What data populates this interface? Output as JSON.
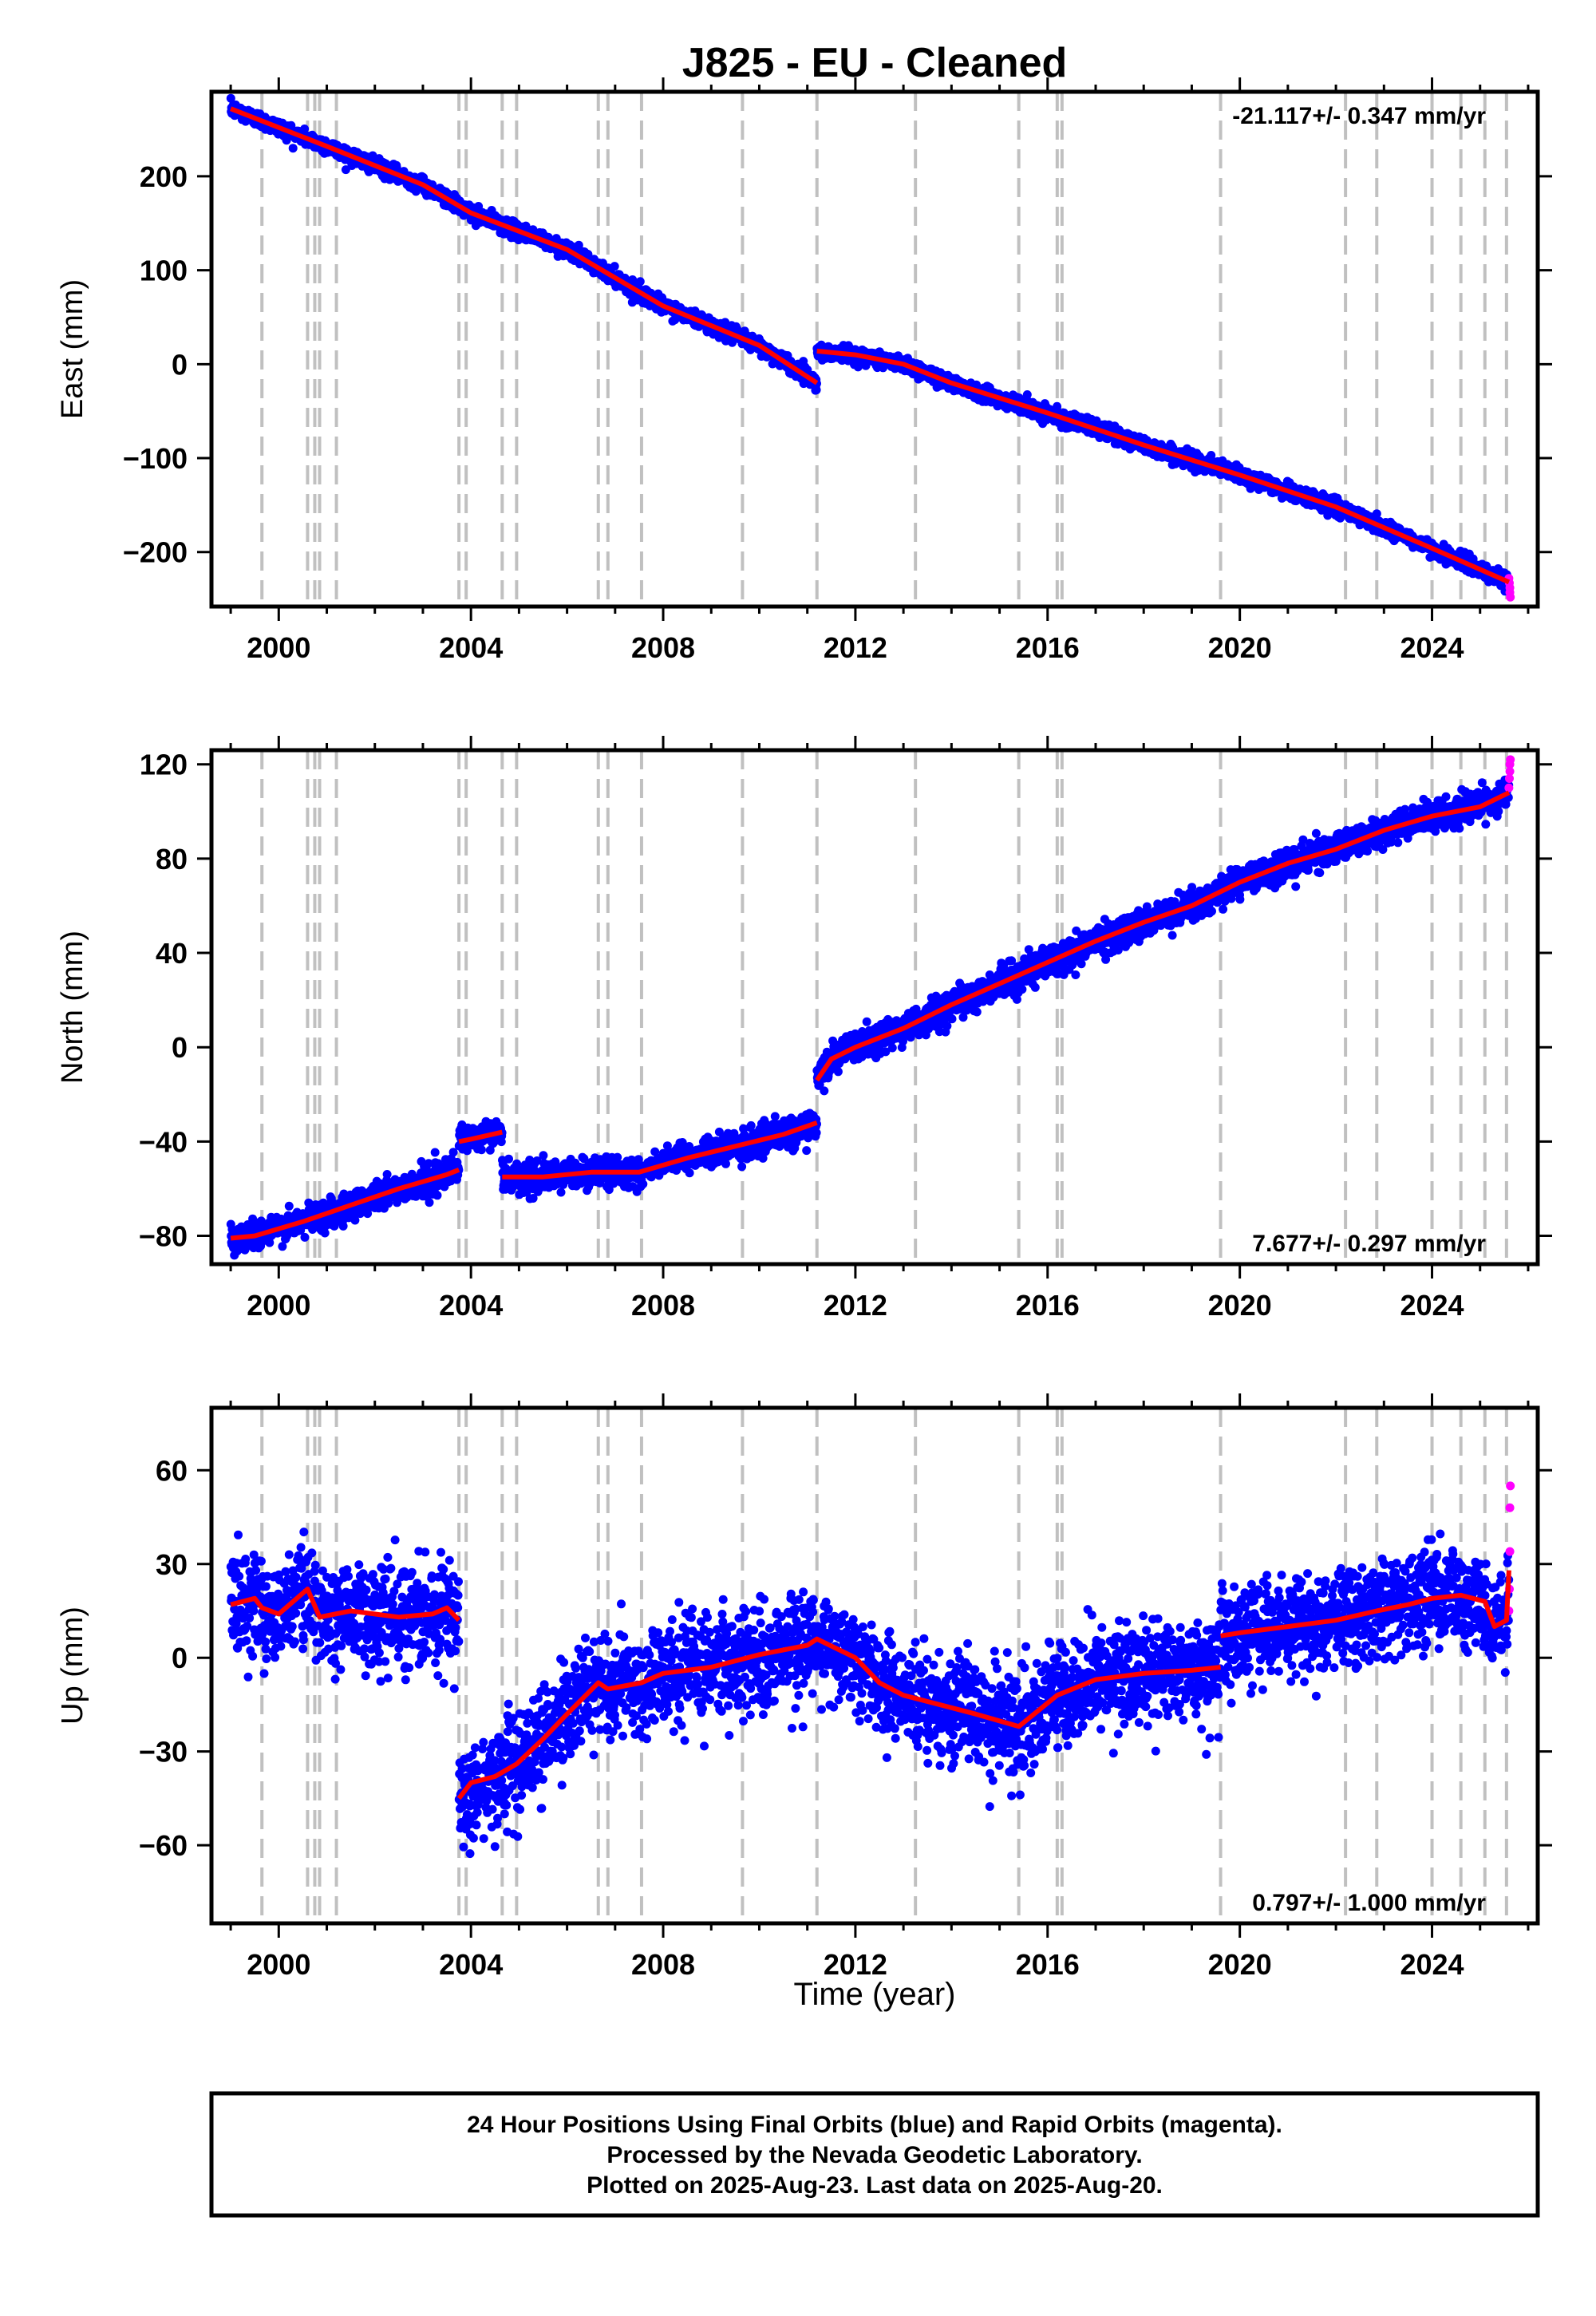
{
  "title": "J825  - EU - Cleaned",
  "xlabel": "Time (year)",
  "footer": {
    "line1": "24 Hour Positions Using Final Orbits (blue) and Rapid Orbits (magenta).",
    "line2": "Processed by the Nevada Geodetic Laboratory.",
    "line3": "Plotted on 2025-Aug-23. Last data on 2025-Aug-20."
  },
  "colors": {
    "final_orbits": "#0000ff",
    "rapid_orbits": "#ff00ff",
    "model": "#ff0000",
    "event_lines": "#c0c0c0"
  },
  "chart_data": [
    {
      "type": "scatter",
      "name": "east",
      "ylabel": "East (mm)",
      "rate_text": "-21.117+/- 0.347 mm/yr",
      "rate_corner": "top-right",
      "xlim": [
        1998.6,
        2026.2
      ],
      "ylim": [
        -258,
        290
      ],
      "xticks": [
        2000,
        2004,
        2008,
        2012,
        2016,
        2020,
        2024
      ],
      "yticks": [
        -200,
        -100,
        0,
        100,
        200
      ],
      "ytick_labels": [
        "−200",
        "−100",
        "0",
        "100",
        "200"
      ],
      "event_lines": [
        1999.65,
        2000.6,
        2000.75,
        2000.85,
        2001.2,
        2003.75,
        2003.9,
        2004.65,
        2004.95,
        2006.65,
        2006.85,
        2007.55,
        2009.65,
        2011.2,
        2013.25,
        2015.4,
        2016.2,
        2016.3,
        2019.6,
        2022.2,
        2022.85,
        2024.0,
        2024.6,
        2025.1,
        2025.55
      ],
      "model_segments": [
        {
          "x": [
            1999.0,
            2001.0,
            2003.0,
            2004.0,
            2006.0,
            2008.0,
            2010.0,
            2011.2
          ],
          "y": [
            272,
            232,
            191,
            161,
            122,
            62,
            20,
            -20
          ]
        },
        {
          "x": [
            2011.2,
            2012.0,
            2013.0,
            2014.0,
            2016.0,
            2018.0,
            2020.0,
            2022.0,
            2024.0,
            2025.6
          ],
          "y": [
            14,
            10,
            0,
            -20,
            -52,
            -86,
            -118,
            -152,
            -196,
            -232
          ]
        }
      ],
      "scatter_sigma": 4,
      "rapid_points": [
        {
          "x": 2025.6,
          "y": -228
        },
        {
          "x": 2025.61,
          "y": -233
        },
        {
          "x": 2025.62,
          "y": -238
        },
        {
          "x": 2025.62,
          "y": -243
        },
        {
          "x": 2025.63,
          "y": -248
        }
      ]
    },
    {
      "type": "scatter",
      "name": "north",
      "ylabel": "North (mm)",
      "rate_text": "7.677+/- 0.297 mm/yr",
      "rate_corner": "bottom-right",
      "xlim": [
        1998.6,
        2026.2
      ],
      "ylim": [
        -92,
        126
      ],
      "xticks": [
        2000,
        2004,
        2008,
        2012,
        2016,
        2020,
        2024
      ],
      "yticks": [
        -80,
        -40,
        0,
        40,
        80,
        120
      ],
      "ytick_labels": [
        "−80",
        "−40",
        "0",
        "40",
        "80",
        "120"
      ],
      "event_lines": [
        1999.65,
        2000.6,
        2000.75,
        2000.85,
        2001.2,
        2003.75,
        2003.9,
        2004.65,
        2004.95,
        2006.65,
        2006.85,
        2007.55,
        2009.65,
        2011.2,
        2013.25,
        2015.4,
        2016.2,
        2016.3,
        2019.6,
        2022.2,
        2022.85,
        2024.0,
        2024.6,
        2025.1,
        2025.55
      ],
      "model_segments": [
        {
          "x": [
            1999.0,
            1999.5,
            2000.5,
            2001.5,
            2002.5,
            2003.5,
            2003.75
          ],
          "y": [
            -81,
            -80,
            -74,
            -67,
            -60,
            -54,
            -52
          ]
        },
        {
          "x": [
            2003.75,
            2004.0,
            2004.65
          ],
          "y": [
            -40,
            -39,
            -36
          ]
        },
        {
          "x": [
            2004.65,
            2005.5,
            2006.5,
            2007.5,
            2008.5,
            2009.5,
            2010.5,
            2011.2
          ],
          "y": [
            -55,
            -55,
            -53,
            -53,
            -47,
            -42,
            -37,
            -32
          ]
        },
        {
          "x": [
            2011.2,
            2011.5,
            2012.0,
            2013.0,
            2014.0,
            2015.0,
            2016.0,
            2017.0,
            2018.0,
            2019.0,
            2020.0,
            2021.0,
            2022.0,
            2023.0,
            2024.0,
            2025.0,
            2025.6
          ],
          "y": [
            -14,
            -5,
            0,
            8,
            18,
            27,
            36,
            45,
            53,
            60,
            70,
            78,
            84,
            92,
            98,
            102,
            108
          ]
        }
      ],
      "scatter_sigma": 3,
      "rapid_points": [
        {
          "x": 2025.6,
          "y": 110
        },
        {
          "x": 2025.61,
          "y": 114
        },
        {
          "x": 2025.62,
          "y": 117
        },
        {
          "x": 2025.62,
          "y": 120
        },
        {
          "x": 2025.63,
          "y": 122
        }
      ]
    },
    {
      "type": "scatter",
      "name": "up",
      "ylabel": "Up (mm)",
      "rate_text": "0.797+/- 1.000 mm/yr",
      "rate_corner": "bottom-right",
      "xlim": [
        1998.6,
        2026.2
      ],
      "ylim": [
        -85,
        80
      ],
      "xticks": [
        2000,
        2004,
        2008,
        2012,
        2016,
        2020,
        2024
      ],
      "xtick_labels": [
        "2000",
        "2004",
        "2008",
        "2012",
        "2016",
        "2020",
        "2024"
      ],
      "yticks": [
        -60,
        -30,
        0,
        30,
        60
      ],
      "ytick_labels": [
        "−60",
        "−30",
        "0",
        "30",
        "60"
      ],
      "event_lines": [
        1999.65,
        2000.6,
        2000.75,
        2000.85,
        2001.2,
        2003.75,
        2003.9,
        2004.65,
        2004.95,
        2006.65,
        2006.85,
        2007.55,
        2009.65,
        2011.2,
        2013.25,
        2015.4,
        2016.2,
        2016.3,
        2019.6,
        2022.2,
        2022.85,
        2024.0,
        2024.6,
        2025.1,
        2025.55
      ],
      "model_segments": [
        {
          "x": [
            1999.0,
            1999.5,
            1999.65,
            2000.0,
            2000.6,
            2000.85,
            2001.5,
            2002.5,
            2003.2,
            2003.5,
            2003.75
          ],
          "y": [
            17,
            19,
            16,
            14,
            22,
            13,
            15,
            13,
            14,
            16,
            12
          ]
        },
        {
          "x": [
            2003.75,
            2004.0,
            2004.5,
            2004.95,
            2005.5,
            2006.0,
            2006.65,
            2006.85,
            2007.55,
            2008.0,
            2008.5,
            2009.0,
            2010.0,
            2011.0,
            2011.2,
            2012.0,
            2012.5,
            2013.0,
            2013.5,
            2014.5,
            2015.4,
            2016.2,
            2017.0,
            2018.0,
            2019.0,
            2019.6
          ],
          "y": [
            -45,
            -40,
            -38,
            -34,
            -26,
            -18,
            -8,
            -10,
            -8,
            -5,
            -4,
            -3,
            1,
            4,
            6,
            0,
            -8,
            -12,
            -14,
            -18,
            -22,
            -12,
            -7,
            -5,
            -4,
            -3
          ]
        },
        {
          "x": [
            2019.6,
            2020.0,
            2021.0,
            2022.0,
            2022.85,
            2023.5,
            2024.0,
            2024.6,
            2025.1,
            2025.3,
            2025.55,
            2025.6
          ],
          "y": [
            7,
            8,
            10,
            12,
            15,
            17,
            19,
            20,
            18,
            10,
            12,
            28
          ]
        }
      ],
      "scatter_sigma": 8,
      "rapid_points": [
        {
          "x": 2025.6,
          "y": 15
        },
        {
          "x": 2025.61,
          "y": 22
        },
        {
          "x": 2025.62,
          "y": 34
        },
        {
          "x": 2025.62,
          "y": 48
        },
        {
          "x": 2025.63,
          "y": 55
        }
      ]
    }
  ]
}
